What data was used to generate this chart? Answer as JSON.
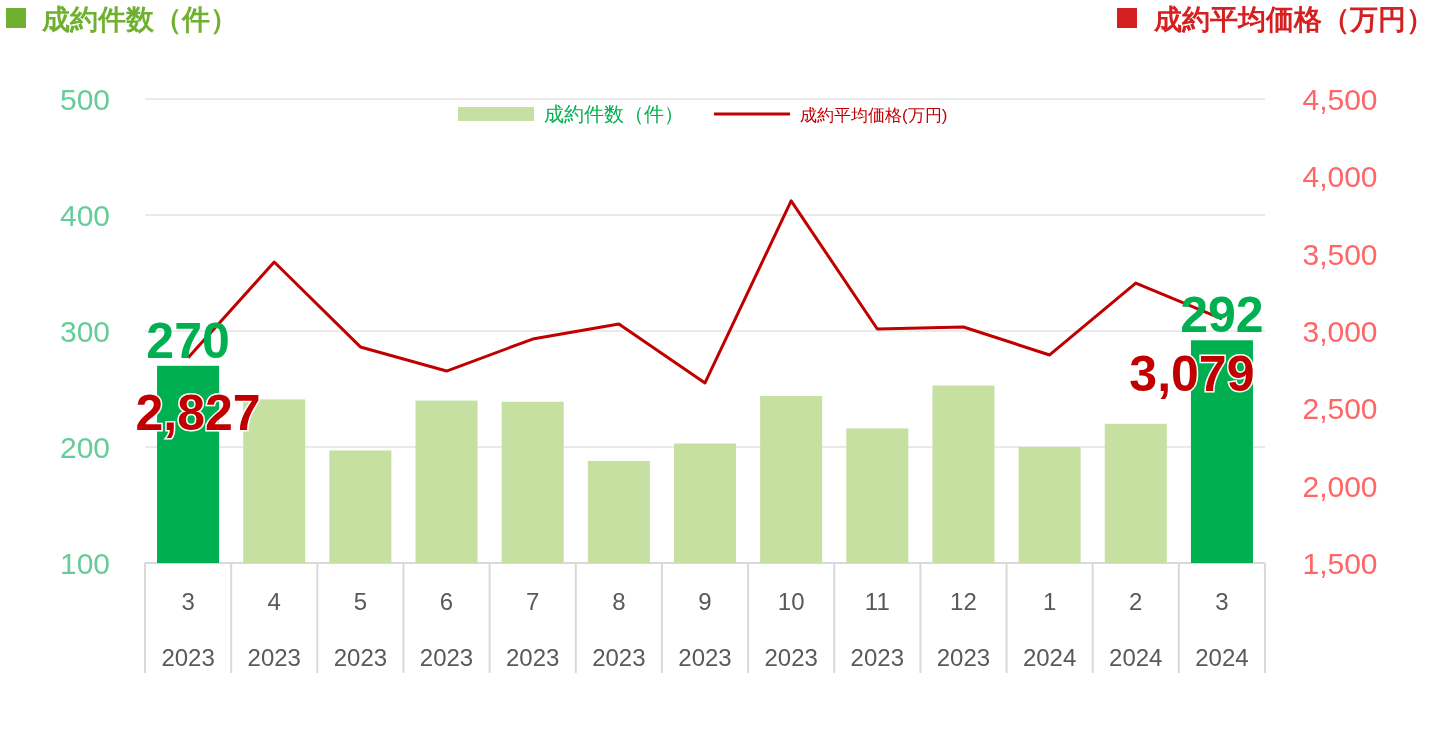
{
  "chart_data": {
    "type": "bar",
    "ylabel": "成約件数（件）",
    "y2label": "成約平均価格（万円）",
    "categories": [
      "3 2023",
      "4 2023",
      "5 2023",
      "6 2023",
      "7 2023",
      "8 2023",
      "9 2023",
      "10 2023",
      "11 2023",
      "12 2023",
      "1 2024",
      "2 2024",
      "3 2024"
    ],
    "ylim": [
      100,
      500
    ],
    "yticks": [
      100,
      200,
      300,
      400,
      500
    ],
    "y2lim": [
      1500,
      4500
    ],
    "y2ticks": [
      {
        "value": 1500,
        "label": "1,500"
      },
      {
        "value": 2000,
        "label": "2,000"
      },
      {
        "value": 2500,
        "label": "2,500"
      },
      {
        "value": 3000,
        "label": "3,000"
      },
      {
        "value": 3500,
        "label": "3,500"
      },
      {
        "value": 4000,
        "label": "4,000"
      },
      {
        "value": 4500,
        "label": "4,500"
      }
    ],
    "grid": "y",
    "legend": "top",
    "series": [
      {
        "name": "成約件数（件）",
        "color": "#c5e0a0",
        "colors": [
          "#00b050",
          "#c5e0a0",
          "#c5e0a0",
          "#c5e0a0",
          "#c5e0a0",
          "#c5e0a0",
          "#c5e0a0",
          "#c5e0a0",
          "#c5e0a0",
          "#c5e0a0",
          "#c5e0a0",
          "#c5e0a0",
          "#00b050"
        ],
        "values": [
          270,
          241,
          197,
          240,
          239,
          188,
          203,
          244,
          216,
          253,
          200,
          220,
          292
        ],
        "value_labels": [
          "270",
          null,
          null,
          null,
          null,
          null,
          null,
          null,
          null,
          null,
          null,
          null,
          "292"
        ]
      },
      {
        "name": "成約平均価格(万円)",
        "type": "line",
        "axis": "y2",
        "color": "#c00000",
        "values": [
          2827,
          3446,
          2897,
          2741,
          2948,
          3045,
          2664,
          3841,
          3013,
          3026,
          2845,
          3310,
          3079
        ],
        "value_labels": [
          "2,827",
          null,
          null,
          null,
          null,
          null,
          null,
          null,
          null,
          null,
          null,
          null,
          "3,079"
        ]
      }
    ]
  }
}
